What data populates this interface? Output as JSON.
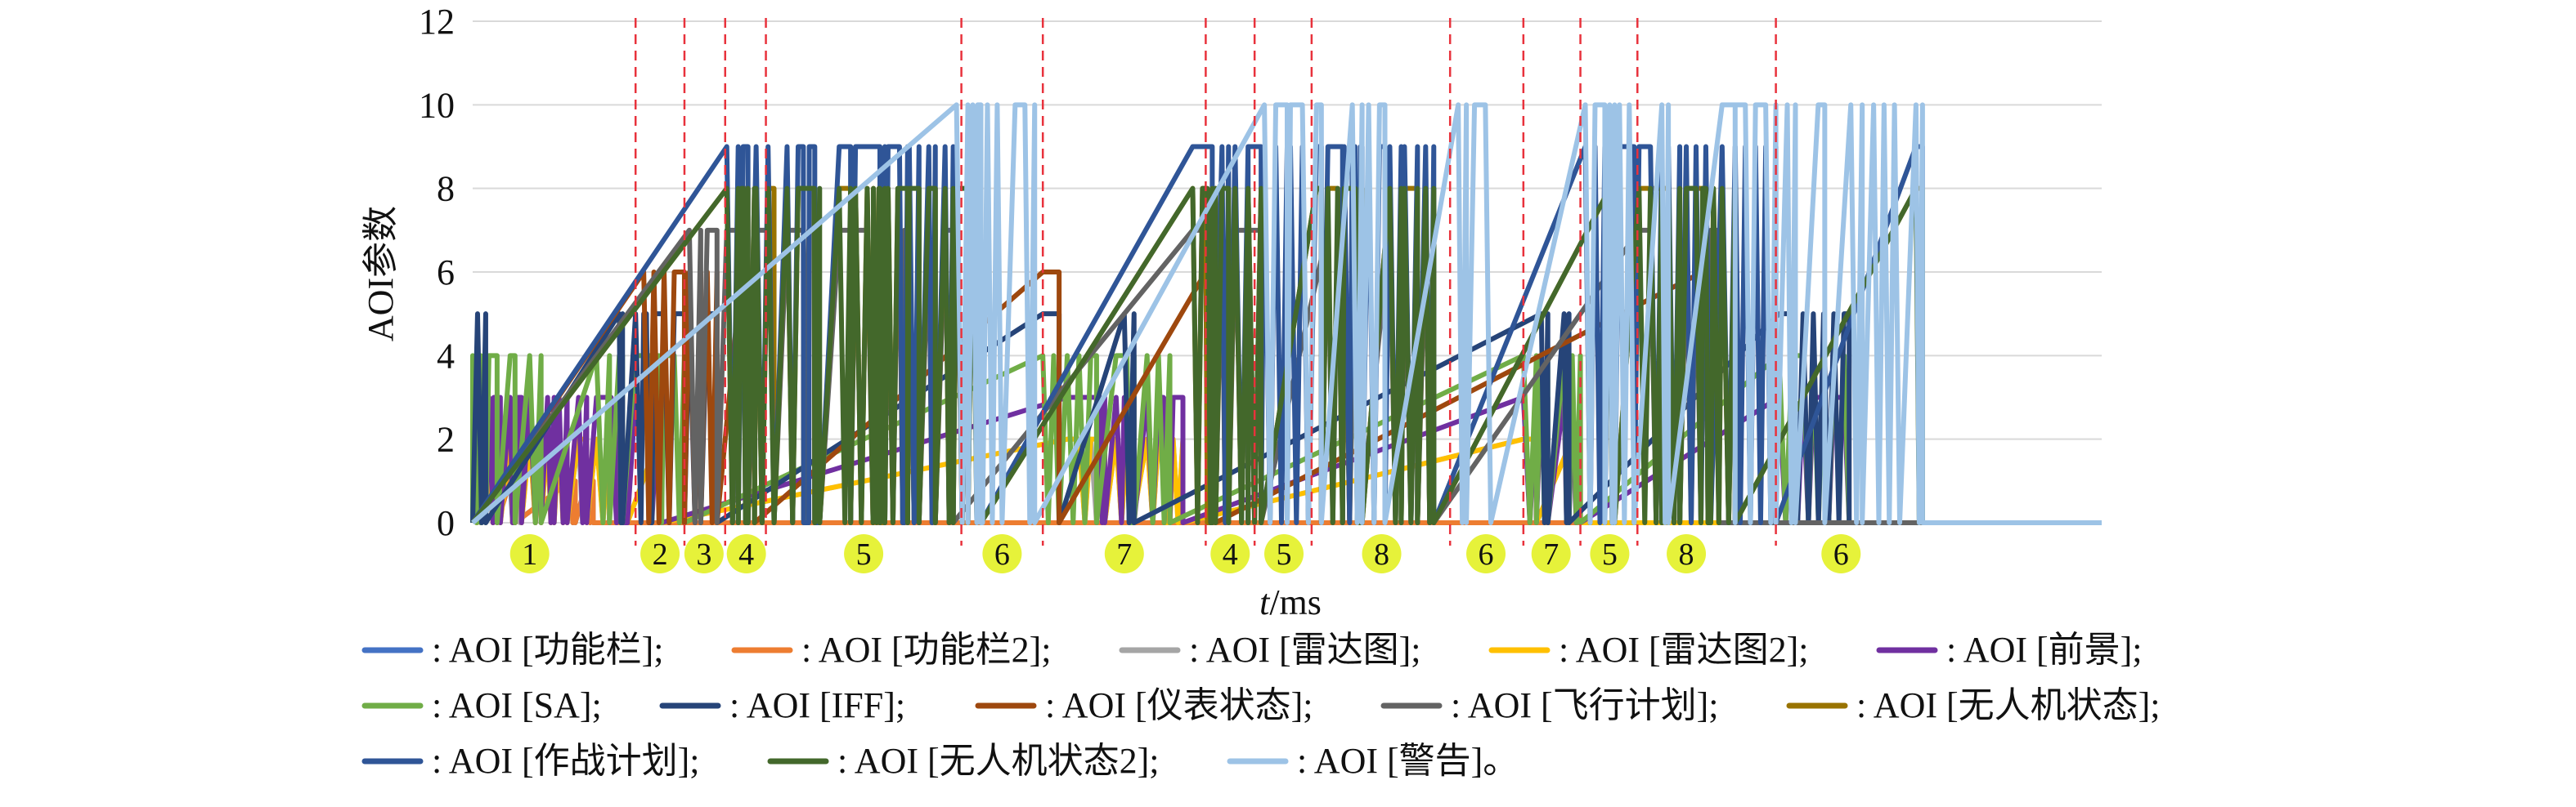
{
  "chart_data": {
    "type": "line",
    "xlabel_italic": "t",
    "xlabel_unit": "/ms",
    "ylabel": "AOI参数",
    "ylim": [
      0,
      12
    ],
    "yticks": [
      0,
      2,
      4,
      6,
      8,
      10,
      12
    ],
    "grid": "horizontal",
    "legend_position": "bottom",
    "legend_prefix": ": AOI ",
    "series": [
      {
        "name": "[功能栏]",
        "color": "#4472C4"
      },
      {
        "name": "[功能栏2]",
        "color": "#ED7D31"
      },
      {
        "name": "[雷达图]",
        "color": "#A5A5A5"
      },
      {
        "name": "[雷达图2]",
        "color": "#FFC000"
      },
      {
        "name": "[前景]",
        "color": "#7030A0"
      },
      {
        "name": "[SA]",
        "color": "#70AD47"
      },
      {
        "name": "[IFF]",
        "color": "#264478"
      },
      {
        "name": "[仪表状态]",
        "color": "#9E480E"
      },
      {
        "name": "[飞行计划]",
        "color": "#636363"
      },
      {
        "name": "[无人机状态]",
        "color": "#997300"
      },
      {
        "name": "[作战计划]",
        "color": "#2F5597"
      },
      {
        "name": "[无人机状态2]",
        "color": "#43682B"
      },
      {
        "name": "[警告]",
        "color": "#9DC3E6"
      }
    ],
    "legend_separators": [
      ";",
      ";",
      ";",
      ";",
      ";",
      ";",
      ";",
      ";",
      ";",
      ";",
      ";",
      ";",
      "。"
    ],
    "x_range": [
      0,
      100
    ],
    "phase_boundaries": [
      10,
      13,
      15.5,
      18,
      30,
      35,
      45,
      48,
      51.5,
      60,
      64.5,
      68,
      71.5,
      80
    ],
    "phases": [
      {
        "label": "1",
        "x": 3.5
      },
      {
        "label": "2",
        "x": 11.5
      },
      {
        "label": "3",
        "x": 14.2
      },
      {
        "label": "4",
        "x": 16.8
      },
      {
        "label": "5",
        "x": 24
      },
      {
        "label": "6",
        "x": 32.5
      },
      {
        "label": "7",
        "x": 40
      },
      {
        "label": "4",
        "x": 46.5
      },
      {
        "label": "5",
        "x": 49.8
      },
      {
        "label": "8",
        "x": 55.8
      },
      {
        "label": "6",
        "x": 62.2
      },
      {
        "label": "7",
        "x": 66.2
      },
      {
        "label": "5",
        "x": 69.8
      },
      {
        "label": "8",
        "x": 74.5
      },
      {
        "label": "6",
        "x": 84
      }
    ],
    "level_blocks": [
      [
        0,
        0.5,
        1,
        4
      ],
      [
        0.3,
        0.8,
        3,
        5
      ],
      [
        1,
        1.5,
        1,
        4
      ],
      [
        1.3,
        1.7,
        2,
        3
      ],
      [
        2.3,
        2.6,
        1,
        4
      ],
      [
        2.8,
        3,
        2,
        3
      ],
      [
        3.5,
        4.2,
        2,
        4
      ],
      [
        4.6,
        5,
        2,
        3
      ],
      [
        5.3,
        5.8,
        2,
        3
      ],
      [
        6,
        6.3,
        1,
        1
      ],
      [
        6.5,
        7,
        2,
        3
      ],
      [
        7,
        7.4,
        1,
        1
      ],
      [
        7.6,
        8.4,
        2,
        4
      ],
      [
        8.5,
        9.5,
        2,
        3
      ],
      [
        9,
        9.2,
        3,
        5
      ],
      [
        10,
        11,
        3,
        5
      ],
      [
        11.4,
        11.6,
        2,
        4
      ],
      [
        10.5,
        13,
        4,
        6
      ],
      [
        13.3,
        14,
        5,
        7
      ],
      [
        14.4,
        15,
        5,
        7
      ],
      [
        15.6,
        16.3,
        7,
        9
      ],
      [
        16.6,
        16.9,
        7,
        9
      ],
      [
        16.5,
        17.3,
        6,
        8
      ],
      [
        17.4,
        18.5,
        7,
        9
      ],
      [
        19.3,
        21,
        9,
        7
      ],
      [
        22.5,
        23.2,
        9,
        7
      ],
      [
        24.6,
        25,
        9,
        7
      ],
      [
        25.5,
        26.7,
        9,
        7
      ],
      [
        20.3,
        21.3,
        7,
        9
      ],
      [
        23.5,
        25.3,
        7,
        9
      ],
      [
        26.2,
        27.4,
        7,
        9
      ],
      [
        28,
        28.4,
        7,
        9
      ],
      [
        29,
        29.5,
        7,
        9
      ],
      [
        29.7,
        30.4,
        8,
        12
      ],
      [
        30.7,
        31.2,
        8,
        12
      ],
      [
        31,
        32.5,
        10,
        13
      ],
      [
        33.3,
        34.5,
        10,
        13
      ],
      [
        35,
        36,
        4,
        6
      ],
      [
        36.5,
        38.3,
        2,
        4
      ],
      [
        38.5,
        38.8,
        2,
        3
      ],
      [
        39.5,
        40.5,
        2,
        4
      ],
      [
        40,
        40.6,
        3,
        5
      ],
      [
        41.4,
        42.8,
        2,
        4
      ],
      [
        42.4,
        43.6,
        2,
        3
      ],
      [
        44.2,
        45.4,
        7,
        9
      ],
      [
        45,
        45.6,
        6,
        8
      ],
      [
        46,
        46.4,
        7,
        9
      ],
      [
        46.8,
        47.6,
        7,
        9
      ],
      [
        47.6,
        48.4,
        9,
        7
      ],
      [
        48.6,
        50,
        9,
        11
      ],
      [
        50.2,
        51.3,
        9,
        11
      ],
      [
        51.8,
        52.1,
        8,
        10
      ],
      [
        52.5,
        53.4,
        7,
        9
      ],
      [
        53.5,
        54.5,
        7,
        9
      ],
      [
        54,
        54.6,
        8,
        10
      ],
      [
        55,
        56,
        9,
        11
      ],
      [
        56.3,
        57,
        7,
        9
      ],
      [
        57.2,
        58,
        7,
        9
      ],
      [
        58.5,
        59,
        7,
        9
      ],
      [
        60.5,
        61,
        10,
        13
      ],
      [
        61.5,
        62.5,
        10,
        13
      ],
      [
        64.5,
        65.3,
        2,
        4
      ],
      [
        65.6,
        66,
        3,
        5
      ],
      [
        67,
        67.3,
        3,
        5
      ],
      [
        67.5,
        68,
        2,
        4
      ],
      [
        68.3,
        69.5,
        9,
        11
      ],
      [
        69.8,
        70.1,
        8,
        12
      ],
      [
        70.4,
        71.3,
        9,
        11
      ],
      [
        71.6,
        73,
        7,
        9
      ],
      [
        73,
        73.4,
        8,
        10
      ],
      [
        73.4,
        74.1,
        7,
        9
      ],
      [
        74.5,
        76,
        7,
        9
      ],
      [
        75.5,
        76.5,
        6,
        8
      ],
      [
        76.7,
        77.5,
        8,
        10
      ],
      [
        77.5,
        80,
        9,
        11
      ],
      [
        80.2,
        81,
        3,
        5
      ],
      [
        81,
        82,
        3,
        5
      ],
      [
        82.3,
        84.5,
        3,
        5
      ],
      [
        80.7,
        81.2,
        10,
        13
      ],
      [
        82.6,
        83,
        10,
        13
      ],
      [
        84.6,
        85.3,
        10,
        13
      ],
      [
        86,
        87.6,
        10,
        13
      ],
      [
        88.6,
        89,
        8,
        12
      ]
    ]
  }
}
